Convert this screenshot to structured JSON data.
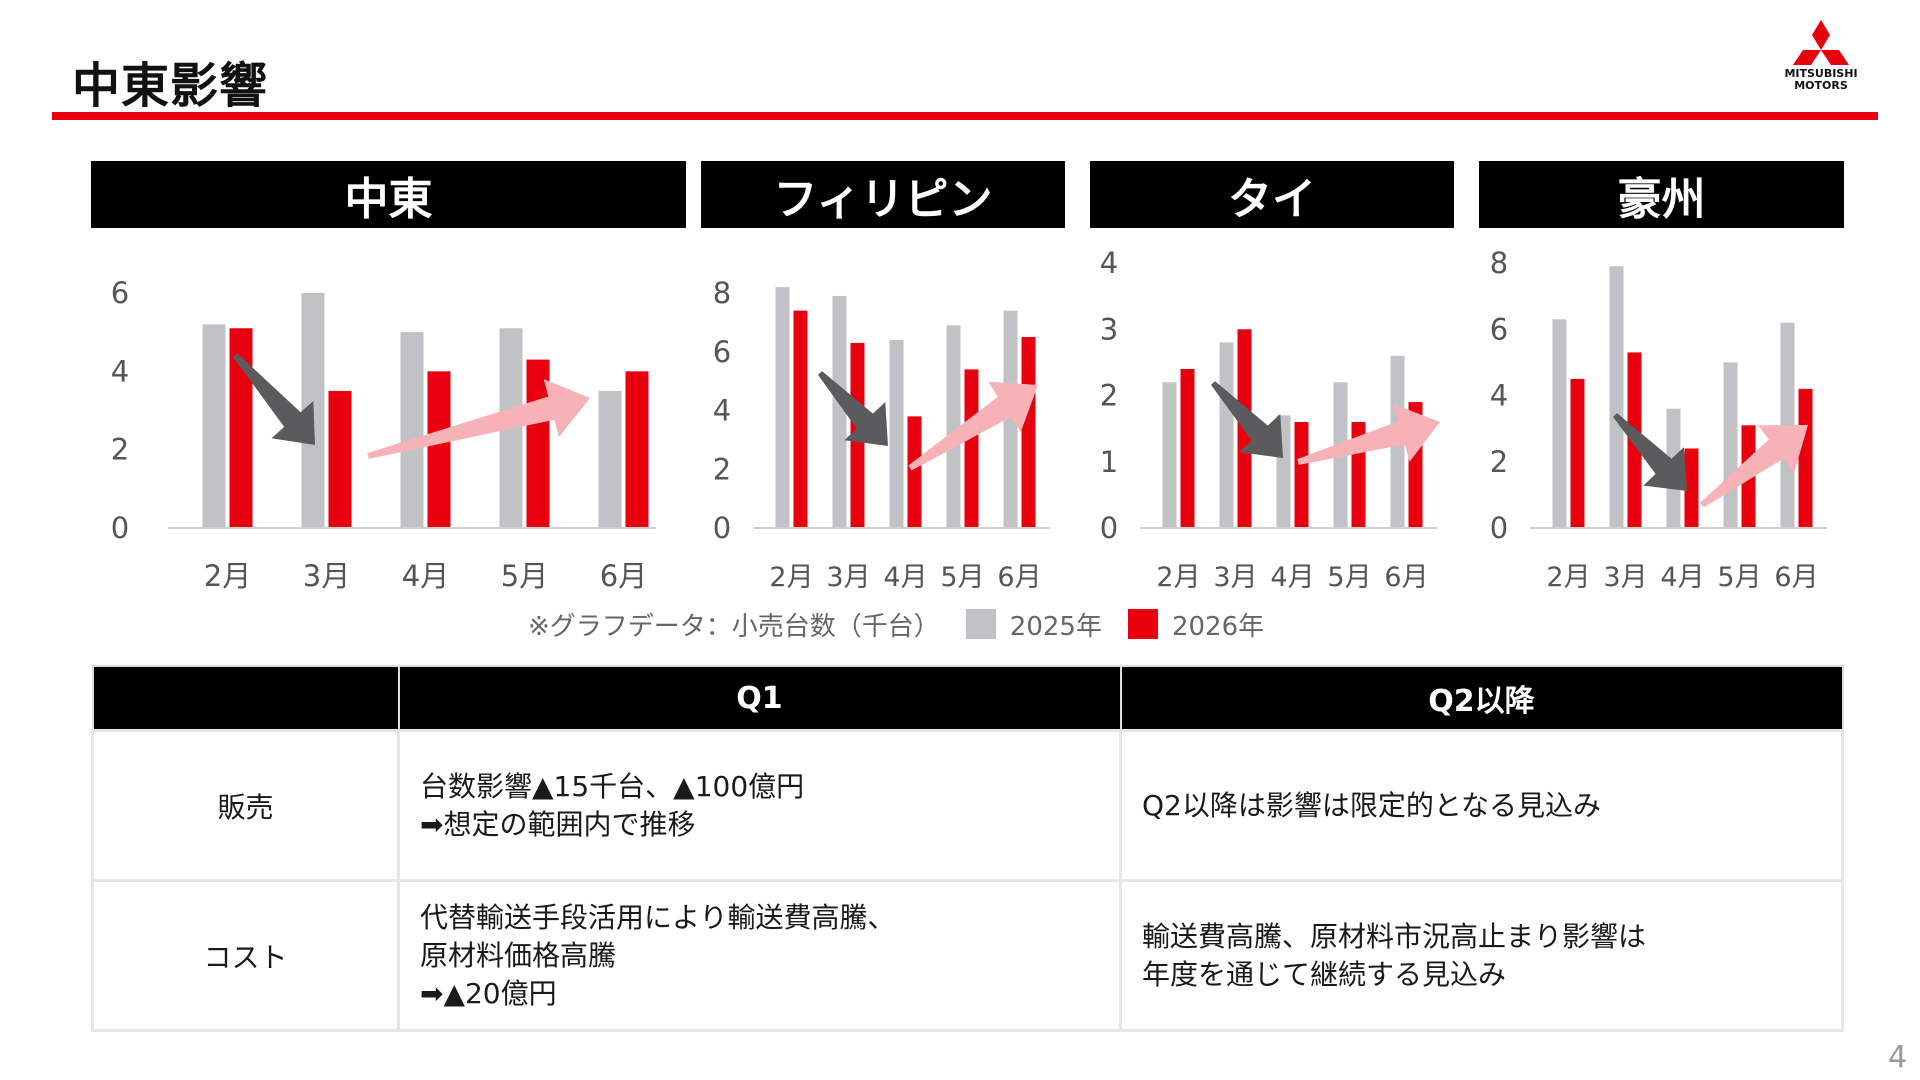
{
  "title": "中東影響",
  "logo": {
    "line1": "MITSUBISHI",
    "line2": "MOTORS"
  },
  "page_number": "4",
  "colors": {
    "y2025": "#c1c2c5",
    "y2026": "#e8000f",
    "accent_red": "#e8000f",
    "arrow_down": "#5b5b5d",
    "arrow_up": "#f7b2b7"
  },
  "legend": {
    "note": "※グラフデータ：小売台数（千台）",
    "s2025": "2025年",
    "s2026": "2026年"
  },
  "chart_data": [
    {
      "type": "bar",
      "title": "中東",
      "categories": [
        "2月",
        "3月",
        "4月",
        "5月",
        "6月"
      ],
      "ylim": [
        0,
        6
      ],
      "yticks": [
        0,
        2,
        4,
        6
      ],
      "series": [
        {
          "name": "2025年",
          "values": [
            5.2,
            6.0,
            5.0,
            5.1,
            3.5
          ]
        },
        {
          "name": "2026年",
          "values": [
            5.1,
            3.5,
            4.0,
            4.3,
            4.0
          ]
        }
      ]
    },
    {
      "type": "bar",
      "title": "フィリピン",
      "categories": [
        "2月",
        "3月",
        "4月",
        "5月",
        "6月"
      ],
      "ylim": [
        0,
        8
      ],
      "yticks": [
        0,
        2,
        4,
        6,
        8
      ],
      "series": [
        {
          "name": "2025年",
          "values": [
            8.2,
            7.9,
            6.4,
            6.9,
            7.4
          ]
        },
        {
          "name": "2026年",
          "values": [
            7.4,
            6.3,
            3.8,
            5.4,
            6.5
          ]
        }
      ]
    },
    {
      "type": "bar",
      "title": "タイ",
      "categories": [
        "2月",
        "3月",
        "4月",
        "5月",
        "6月"
      ],
      "ylim": [
        0,
        4
      ],
      "yticks": [
        0,
        1,
        2,
        3,
        4
      ],
      "series": [
        {
          "name": "2025年",
          "values": [
            2.2,
            2.8,
            1.7,
            2.2,
            2.6
          ]
        },
        {
          "name": "2026年",
          "values": [
            2.4,
            3.0,
            1.6,
            1.6,
            1.9
          ]
        }
      ]
    },
    {
      "type": "bar",
      "title": "豪州",
      "categories": [
        "2月",
        "3月",
        "4月",
        "5月",
        "6月"
      ],
      "ylim": [
        0,
        8
      ],
      "yticks": [
        0,
        2,
        4,
        6,
        8
      ],
      "series": [
        {
          "name": "2025年",
          "values": [
            6.3,
            7.9,
            3.6,
            5.0,
            6.2
          ]
        },
        {
          "name": "2026年",
          "values": [
            4.5,
            5.3,
            2.4,
            3.1,
            4.2
          ]
        }
      ]
    }
  ],
  "table": {
    "headers": [
      "",
      "Q1",
      "Q2以降"
    ],
    "rows": [
      {
        "label": "販売",
        "q1": "台数影響▲15千台、▲100億円\n➡想定の範囲内で推移",
        "q2": "Q2以降は影響は限定的となる見込み"
      },
      {
        "label": "コスト",
        "q1": "代替輸送手段活用により輸送費高騰、\n原材料価格高騰\n➡▲20億円",
        "q2": "輸送費高騰、原材料市況高止まり影響は\n年度を通じて継続する見込み"
      }
    ]
  }
}
